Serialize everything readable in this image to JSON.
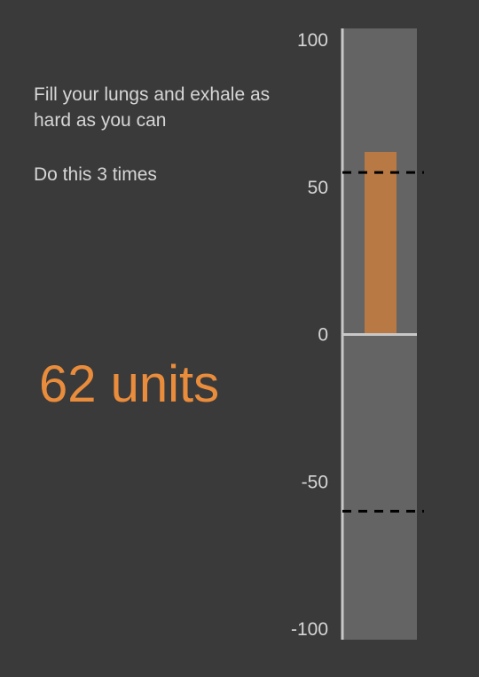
{
  "instructions": {
    "line1": "Fill your lungs and exhale as hard as you can",
    "line2": "Do this 3 times"
  },
  "reading": {
    "value": 62,
    "unit": "units",
    "text": "62 units"
  },
  "gauge": {
    "min": -100,
    "max": 100,
    "ticks": [
      100,
      50,
      0,
      -50,
      -100
    ],
    "current_value": 62,
    "upper_threshold": 55,
    "lower_threshold": -60
  },
  "colors": {
    "background": "#3a3a3a",
    "track": "#646464",
    "axis": "#c8c8c8",
    "accent": "#e98c3c",
    "bar": "#b87945",
    "text": "#d6d6d6"
  }
}
